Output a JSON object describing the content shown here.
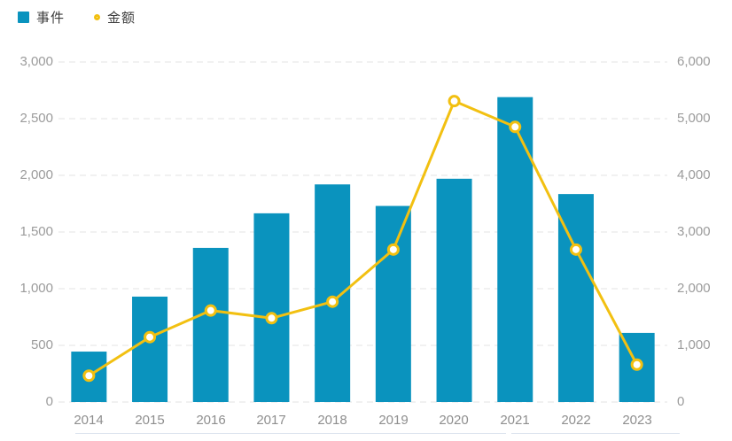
{
  "legend": {
    "items": [
      {
        "label": "事件",
        "marker": "square",
        "color": "#0A93BE"
      },
      {
        "label": "金额",
        "marker": "ring",
        "color": "#F2C011"
      }
    ]
  },
  "chart_data": {
    "type": "combo-bar-line",
    "categories": [
      "2014",
      "2015",
      "2016",
      "2017",
      "2018",
      "2019",
      "2020",
      "2021",
      "2022",
      "2023"
    ],
    "series": [
      {
        "name": "事件",
        "type": "bar",
        "axis": "left",
        "color": "#0A93BE",
        "values": [
          445,
          930,
          1360,
          1665,
          1920,
          1730,
          1970,
          2690,
          1835,
          610
        ]
      },
      {
        "name": "金额",
        "type": "line",
        "axis": "right",
        "color": "#F2C011",
        "marker": "circle",
        "marker_fill": "#FFFFFF",
        "values": [
          465,
          1145,
          1615,
          1480,
          1770,
          2690,
          5310,
          4855,
          2690,
          660
        ]
      }
    ],
    "left_axis": {
      "min": 0,
      "max": 3000,
      "tick_step": 500,
      "ticks": [
        "3,000",
        "2,500",
        "2,000",
        "1,500",
        "1,000",
        "500",
        "0"
      ]
    },
    "right_axis": {
      "min": 0,
      "max": 6000,
      "tick_step": 1000,
      "ticks": [
        "6,000",
        "5,000",
        "4,000",
        "3,000",
        "2,000",
        "1,000",
        "0"
      ]
    },
    "grid": {
      "horizontal": true,
      "style": "dashed",
      "color": "#E3E3E3"
    },
    "legend_position": "top-left",
    "background": "#FFFFFF"
  }
}
